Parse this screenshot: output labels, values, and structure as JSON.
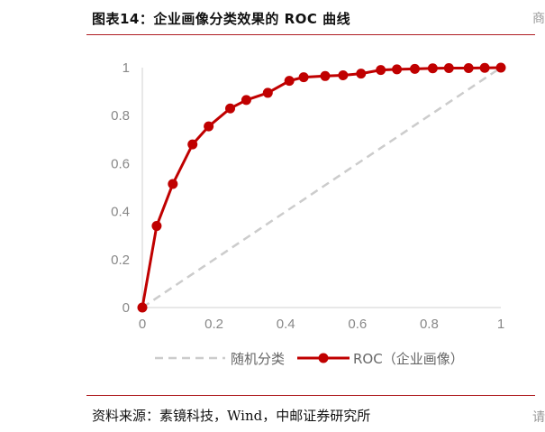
{
  "header": {
    "title": "图表14：企业画像分类效果的 ROC 曲线",
    "edge_char": "商"
  },
  "footer": {
    "source": "资料来源：素镜科技，Wind，中邮证券研究所",
    "edge_char": "请"
  },
  "colors": {
    "rule": "#b01e23",
    "roc": "#c00000",
    "random": "#cccccc",
    "axis": "#d0d0d0",
    "tick": "#888888"
  },
  "chart_data": {
    "type": "line",
    "title": "",
    "xlabel": "",
    "ylabel": "",
    "xlim": [
      0,
      1
    ],
    "ylim": [
      0,
      1
    ],
    "xticks": [
      "0",
      "0.2",
      "0.4",
      "0.6",
      "0.8",
      "1"
    ],
    "yticks": [
      "0",
      "0.2",
      "0.4",
      "0.6",
      "0.8",
      "1"
    ],
    "grid": false,
    "legend_position": "bottom",
    "series": [
      {
        "name": "随机分类",
        "style": "dashed",
        "marker": false,
        "x": [
          0,
          1
        ],
        "y": [
          0,
          1
        ]
      },
      {
        "name": "ROC（企业画像）",
        "style": "solid",
        "marker": true,
        "x": [
          0,
          0.04,
          0.085,
          0.14,
          0.185,
          0.245,
          0.29,
          0.35,
          0.41,
          0.45,
          0.51,
          0.56,
          0.61,
          0.665,
          0.71,
          0.76,
          0.81,
          0.855,
          0.91,
          0.955,
          1.0
        ],
        "y": [
          0,
          0.34,
          0.515,
          0.68,
          0.755,
          0.83,
          0.865,
          0.895,
          0.945,
          0.96,
          0.965,
          0.968,
          0.975,
          0.99,
          0.993,
          0.995,
          0.997,
          0.998,
          0.998,
          0.999,
          1.0
        ]
      }
    ]
  }
}
